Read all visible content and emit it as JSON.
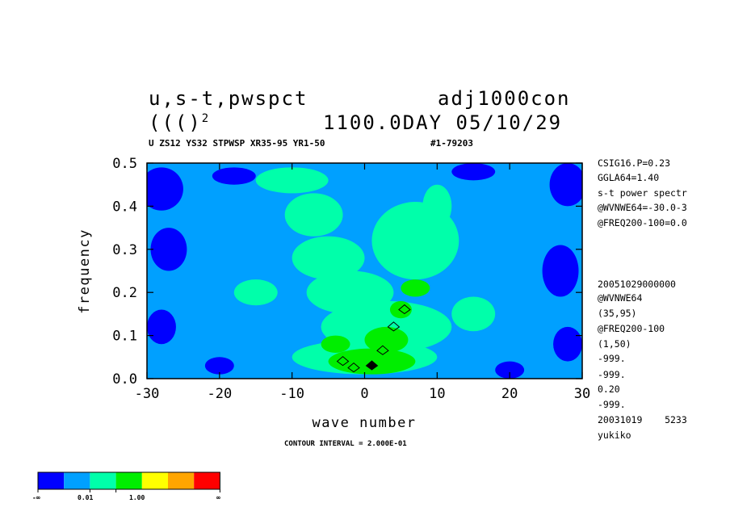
{
  "header": {
    "title_left": "u,s-t,pwspct",
    "title_right": "adj1000con",
    "subtitle_left": "((()",
    "subtitle_exp": "2",
    "subtitle_right": "1100.0DAY 05/10/29",
    "meta_line": "U ZS12 YS32 STPWSP XR35-95 YR1-50",
    "meta_id": "#1-79203"
  },
  "side_info": [
    "CSIG16.P=0.23",
    "GGLA64=1.40",
    "s-t power spectr",
    "@WVNWE64=-30.0-3",
    "@FREQ200-100=0.0",
    "20051029000000",
    "@WVNWE64",
    "(35,95)",
    "@FREQ200-100",
    "(1,50)",
    "-999.",
    "-999.",
    "0.20",
    "-999.",
    "20031019    5233",
    "yukiko"
  ],
  "contour_interval": "CONTOUR INTERVAL = 2.000E-01",
  "legend": {
    "colors": [
      "#0000ff",
      "#00a0ff",
      "#00ffaa",
      "#00ee00",
      "#ffff00",
      "#ffa500",
      "#ff0000"
    ],
    "labels": [
      "-∞",
      "0.01",
      "1.00",
      "∞"
    ]
  },
  "colors": {
    "background": "#00a0ff",
    "low": "#0000ff",
    "mid": "#00ffaa",
    "high": "#00ee00",
    "contour": "#000000"
  },
  "chart_data": {
    "type": "heatmap",
    "title": "u,s-t,pwspct",
    "xlabel": "wave number",
    "ylabel": "frequency",
    "xlim": [
      -30,
      30
    ],
    "ylim": [
      0,
      0.5
    ],
    "xticks": [
      -30,
      -20,
      -10,
      0,
      10,
      20,
      30
    ],
    "yticks": [
      0.0,
      0.1,
      0.2,
      0.3,
      0.4,
      0.5
    ],
    "xtick_labels": [
      "-30",
      "-20",
      "-10",
      "0",
      "10",
      "20",
      "30"
    ],
    "ytick_labels": [
      "0.0",
      "0.1",
      "0.2",
      "0.3",
      "0.4",
      "0.5"
    ],
    "levels": [
      "-∞",
      "0.01",
      "1.00",
      "∞"
    ],
    "regions": {
      "low_blobs": [
        {
          "x": -28,
          "y": 0.44,
          "rx": 3,
          "ry": 0.05
        },
        {
          "x": -27,
          "y": 0.3,
          "rx": 2.5,
          "ry": 0.05
        },
        {
          "x": -28,
          "y": 0.12,
          "rx": 2,
          "ry": 0.04
        },
        {
          "x": 28,
          "y": 0.45,
          "rx": 2.5,
          "ry": 0.05
        },
        {
          "x": 27,
          "y": 0.25,
          "rx": 2.5,
          "ry": 0.06
        },
        {
          "x": 28,
          "y": 0.08,
          "rx": 2,
          "ry": 0.04
        },
        {
          "x": -18,
          "y": 0.47,
          "rx": 3,
          "ry": 0.02
        },
        {
          "x": 15,
          "y": 0.48,
          "rx": 3,
          "ry": 0.02
        },
        {
          "x": -20,
          "y": 0.03,
          "rx": 2,
          "ry": 0.02
        },
        {
          "x": 20,
          "y": 0.02,
          "rx": 2,
          "ry": 0.02
        }
      ],
      "mid_band": [
        {
          "x": -10,
          "y": 0.46,
          "rx": 5,
          "ry": 0.03
        },
        {
          "x": -7,
          "y": 0.38,
          "rx": 4,
          "ry": 0.05
        },
        {
          "x": -5,
          "y": 0.28,
          "rx": 5,
          "ry": 0.05
        },
        {
          "x": 7,
          "y": 0.32,
          "rx": 6,
          "ry": 0.09
        },
        {
          "x": 10,
          "y": 0.4,
          "rx": 2,
          "ry": 0.05
        },
        {
          "x": -2,
          "y": 0.2,
          "rx": 6,
          "ry": 0.05
        },
        {
          "x": 3,
          "y": 0.12,
          "rx": 9,
          "ry": 0.06
        },
        {
          "x": 0,
          "y": 0.05,
          "rx": 10,
          "ry": 0.04
        },
        {
          "x": -15,
          "y": 0.2,
          "rx": 3,
          "ry": 0.03
        },
        {
          "x": 15,
          "y": 0.15,
          "rx": 3,
          "ry": 0.04
        }
      ],
      "high_blobs": [
        {
          "x": 1,
          "y": 0.04,
          "rx": 6,
          "ry": 0.03
        },
        {
          "x": 3,
          "y": 0.09,
          "rx": 3,
          "ry": 0.03
        },
        {
          "x": 5,
          "y": 0.16,
          "rx": 1.5,
          "ry": 0.02
        },
        {
          "x": -4,
          "y": 0.08,
          "rx": 2,
          "ry": 0.02
        },
        {
          "x": 7,
          "y": 0.21,
          "rx": 2,
          "ry": 0.02
        }
      ],
      "contour_peaks": [
        {
          "x": 1.0,
          "y": 0.03
        },
        {
          "x": 2.5,
          "y": 0.065
        },
        {
          "x": 4.0,
          "y": 0.12
        },
        {
          "x": 5.5,
          "y": 0.16
        },
        {
          "x": -1.5,
          "y": 0.025
        },
        {
          "x": -3.0,
          "y": 0.04
        }
      ]
    }
  }
}
